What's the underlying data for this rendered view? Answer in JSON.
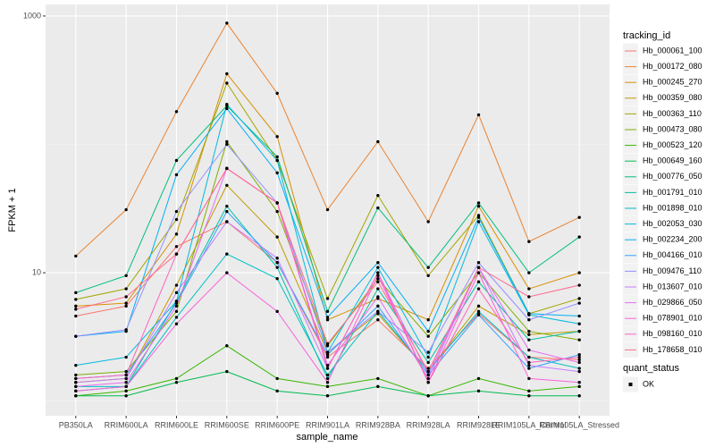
{
  "chart_data": {
    "type": "line",
    "x_label": "sample_name",
    "y_label": "FPKM + 1",
    "y_scale": "log",
    "grid": true,
    "legend_title": "tracking_id",
    "shape_legend_title": "quant_status",
    "shape_legend_labels": [
      "OK"
    ],
    "point_color": "#000000",
    "categories": [
      "PB350LA",
      "RRIM600LA",
      "RRIM600LE",
      "RRIM600SE",
      "RRIM600PE",
      "RRIM901LA",
      "RRIM928BA",
      "RRIM928LA",
      "RRIM928LE",
      "RRIM105LA_Control",
      "RRIM105LA_Stressed"
    ],
    "ylim": [
      0.77,
      1230
    ],
    "yticks": [
      10,
      1000
    ],
    "series": [
      {
        "name": "Hb_000061_100",
        "color": "#F8766D",
        "values": [
          4.6,
          5.5,
          16,
          25,
          12,
          2.2,
          4.3,
          1.8,
          4.8,
          2.2,
          2.1
        ]
      },
      {
        "name": "Hb_000172_080",
        "color": "#EA8331",
        "values": [
          13.5,
          31,
          180,
          880,
          250,
          31,
          105,
          25,
          170,
          17.5,
          27
        ]
      },
      {
        "name": "Hb_000245_270",
        "color": "#D89000",
        "values": [
          5.5,
          5.8,
          20,
          355,
          115,
          4.3,
          6.3,
          4.3,
          33,
          7.5,
          10
        ]
      },
      {
        "name": "Hb_000359_080",
        "color": "#C09B00",
        "values": [
          1.4,
          1.5,
          8,
          48,
          19,
          2.4,
          4.8,
          1.7,
          5.5,
          3.3,
          3.5
        ]
      },
      {
        "name": "Hb_000363_110",
        "color": "#A3A500",
        "values": [
          6.2,
          7.5,
          26,
          300,
          75,
          6.3,
          40,
          9.5,
          28,
          4.8,
          6.3
        ]
      },
      {
        "name": "Hb_000473_080",
        "color": "#7CAE00",
        "values": [
          1.6,
          1.7,
          5,
          105,
          30,
          2.7,
          9,
          3.2,
          10,
          3.5,
          3
        ]
      },
      {
        "name": "Hb_000523_120",
        "color": "#39B600",
        "values": [
          1.1,
          1.2,
          1.5,
          2.7,
          1.5,
          1.3,
          1.5,
          1.1,
          1.5,
          1.2,
          1.3
        ]
      },
      {
        "name": "Hb_000649_160",
        "color": "#00BB4E",
        "values": [
          1.1,
          1.1,
          1.4,
          1.7,
          1.2,
          1.1,
          1.3,
          1.1,
          1.2,
          1.1,
          1.1
        ]
      },
      {
        "name": "Hb_000776_050",
        "color": "#00BF7D",
        "values": [
          7,
          9.5,
          75,
          200,
          80,
          5,
          32,
          11,
          35,
          10,
          19
        ]
      },
      {
        "name": "Hb_001791_010",
        "color": "#00C1A3",
        "values": [
          1.2,
          1.3,
          6,
          33,
          11,
          1.5,
          7.5,
          2,
          8.5,
          3,
          3.5
        ]
      },
      {
        "name": "Hb_001898_010",
        "color": "#00BFC4",
        "values": [
          1.3,
          1.3,
          4.5,
          14,
          9,
          1.6,
          5,
          1.7,
          5,
          2.2,
          1.8
        ]
      },
      {
        "name": "Hb_002053_030",
        "color": "#00BAE0",
        "values": [
          1.9,
          2.2,
          6,
          205,
          75,
          2.4,
          11,
          2.2,
          25,
          4.7,
          4
        ]
      },
      {
        "name": "Hb_002234_200",
        "color": "#00B0F6",
        "values": [
          3.2,
          3.5,
          58,
          190,
          60,
          4.5,
          12,
          3.5,
          27,
          4.8,
          4.6
        ]
      },
      {
        "name": "Hb_004166_010",
        "color": "#35A2FF",
        "values": [
          1.5,
          1.6,
          5.8,
          30,
          12,
          2.3,
          5.5,
          1.6,
          4.7,
          1.8,
          2.3
        ]
      },
      {
        "name": "Hb_009476_110",
        "color": "#9590FF",
        "values": [
          3.2,
          3.6,
          30,
          100,
          35,
          2.4,
          5,
          2.4,
          12,
          4.3,
          5.8
        ]
      },
      {
        "name": "Hb_013607_010",
        "color": "#C77CFF",
        "values": [
          1.4,
          1.5,
          7,
          25,
          13,
          1.8,
          10,
          1.6,
          11,
          1.9,
          1.7
        ]
      },
      {
        "name": "Hb_029866_050",
        "color": "#E76BF3",
        "values": [
          1.3,
          1.4,
          5.5,
          65,
          35,
          1.9,
          6.5,
          1.5,
          11,
          2.5,
          2
        ]
      },
      {
        "name": "Hb_078901_010",
        "color": "#FA62DB",
        "values": [
          1.2,
          1.3,
          4,
          10,
          5,
          1.4,
          9.5,
          1.4,
          10,
          1.5,
          1.4
        ]
      },
      {
        "name": "Hb_098160_010",
        "color": "#FF62BC",
        "values": [
          1.5,
          1.6,
          14,
          65,
          35,
          1.8,
          10,
          1.4,
          7.5,
          2,
          2.2
        ]
      },
      {
        "name": "Hb_178658_010",
        "color": "#FF6C91",
        "values": [
          5.2,
          6.5,
          14,
          65,
          35,
          2.8,
          8.5,
          1.7,
          11,
          6.5,
          8
        ]
      }
    ]
  }
}
